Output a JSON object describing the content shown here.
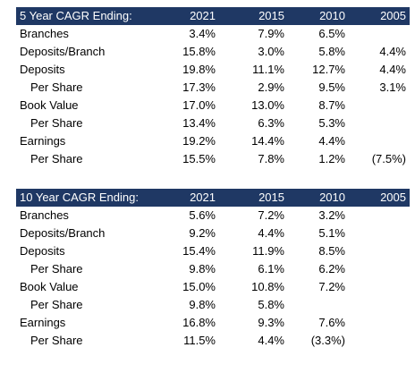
{
  "tables": [
    {
      "header": {
        "title": "5 Year CAGR Ending:",
        "years": [
          "2021",
          "2015",
          "2010",
          "2005"
        ]
      },
      "rows": [
        {
          "label": "Branches",
          "indent": false,
          "values": [
            "3.4%",
            "7.9%",
            "6.5%",
            ""
          ]
        },
        {
          "label": "Deposits/Branch",
          "indent": false,
          "values": [
            "15.8%",
            "3.0%",
            "5.8%",
            "4.4%"
          ]
        },
        {
          "label": "Deposits",
          "indent": false,
          "values": [
            "19.8%",
            "11.1%",
            "12.7%",
            "4.4%"
          ]
        },
        {
          "label": "Per Share",
          "indent": true,
          "values": [
            "17.3%",
            "2.9%",
            "9.5%",
            "3.1%"
          ]
        },
        {
          "label": "Book Value",
          "indent": false,
          "values": [
            "17.0%",
            "13.0%",
            "8.7%",
            ""
          ]
        },
        {
          "label": "Per Share",
          "indent": true,
          "values": [
            "13.4%",
            "6.3%",
            "5.3%",
            ""
          ]
        },
        {
          "label": "Earnings",
          "indent": false,
          "values": [
            "19.2%",
            "14.4%",
            "4.4%",
            ""
          ]
        },
        {
          "label": "Per Share",
          "indent": true,
          "values": [
            "15.5%",
            "7.8%",
            "1.2%",
            "(7.5%)"
          ]
        }
      ]
    },
    {
      "header": {
        "title": "10 Year CAGR Ending:",
        "years": [
          "2021",
          "2015",
          "2010",
          "2005"
        ]
      },
      "rows": [
        {
          "label": "Branches",
          "indent": false,
          "values": [
            "5.6%",
            "7.2%",
            "3.2%",
            ""
          ]
        },
        {
          "label": "Deposits/Branch",
          "indent": false,
          "values": [
            "9.2%",
            "4.4%",
            "5.1%",
            ""
          ]
        },
        {
          "label": "Deposits",
          "indent": false,
          "values": [
            "15.4%",
            "11.9%",
            "8.5%",
            ""
          ]
        },
        {
          "label": "Per Share",
          "indent": true,
          "values": [
            "9.8%",
            "6.1%",
            "6.2%",
            ""
          ]
        },
        {
          "label": "Book Value",
          "indent": false,
          "values": [
            "15.0%",
            "10.8%",
            "7.2%",
            ""
          ]
        },
        {
          "label": "Per Share",
          "indent": true,
          "values": [
            "9.8%",
            "5.8%",
            "",
            ""
          ]
        },
        {
          "label": "Earnings",
          "indent": false,
          "values": [
            "16.8%",
            "9.3%",
            "7.6%",
            ""
          ]
        },
        {
          "label": "Per Share",
          "indent": true,
          "values": [
            "11.5%",
            "4.4%",
            "(3.3%)",
            ""
          ]
        }
      ]
    }
  ]
}
